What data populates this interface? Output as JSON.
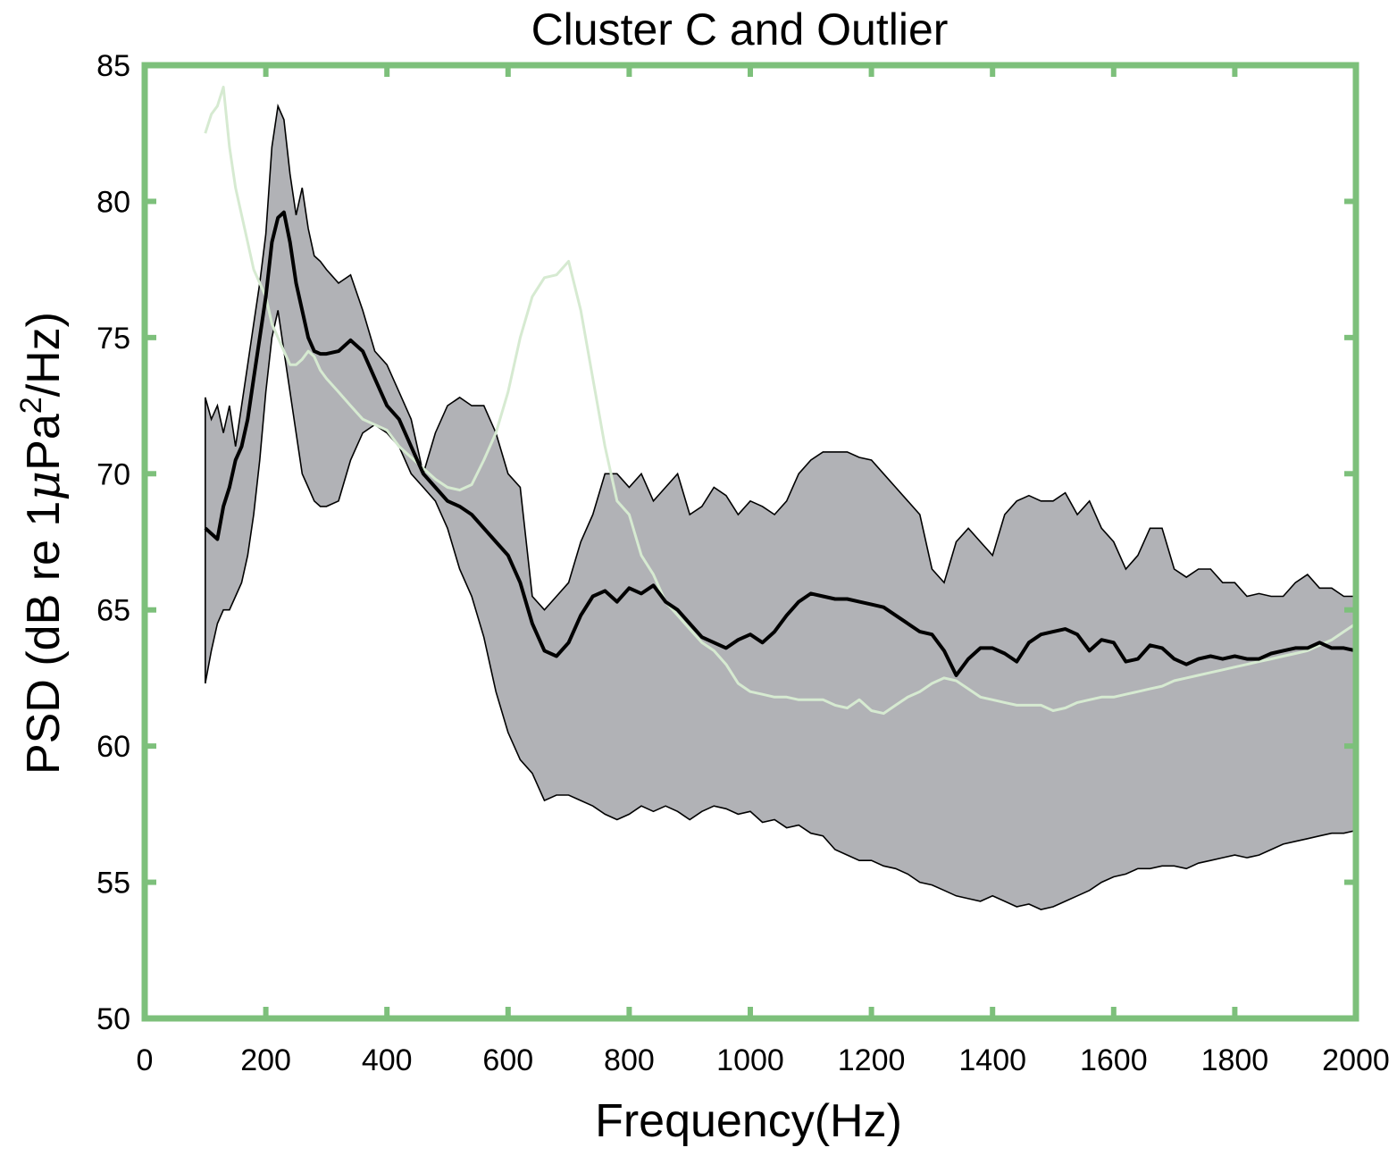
{
  "chart_data": {
    "type": "area",
    "title": "Cluster C and Outlier",
    "xlabel": "Frequency(Hz)",
    "ylabel": {
      "main": "PSD (dB re 1",
      "mu": "μ",
      "pa": "Pa",
      "sup": "2",
      "tail": "/Hz)"
    },
    "xlim": [
      0,
      2000
    ],
    "ylim": [
      50,
      85
    ],
    "xticks": [
      "0",
      "200",
      "400",
      "600",
      "800",
      "1000",
      "1200",
      "1400",
      "1600",
      "1800",
      "2000"
    ],
    "yticks": [
      "50",
      "55",
      "60",
      "65",
      "70",
      "75",
      "80",
      "85"
    ],
    "grid": false,
    "colors": {
      "frame": "#7dc07b",
      "band_fill": "#b1b2b6",
      "band_edge": "#000000",
      "mean_line": "#000000",
      "outlier_line": "#d6ead1"
    },
    "series": [
      {
        "role": "band-upper",
        "x": [
          100,
          110,
          120,
          130,
          140,
          150,
          160,
          170,
          180,
          190,
          200,
          210,
          220,
          230,
          240,
          250,
          260,
          270,
          280,
          290,
          300,
          320,
          340,
          360,
          380,
          400,
          420,
          440,
          460,
          480,
          500,
          520,
          540,
          560,
          580,
          600,
          620,
          640,
          660,
          680,
          700,
          720,
          740,
          760,
          780,
          800,
          820,
          840,
          860,
          880,
          900,
          920,
          940,
          960,
          980,
          1000,
          1020,
          1040,
          1060,
          1080,
          1100,
          1120,
          1140,
          1160,
          1180,
          1200,
          1220,
          1240,
          1260,
          1280,
          1300,
          1320,
          1340,
          1360,
          1380,
          1400,
          1420,
          1440,
          1460,
          1480,
          1500,
          1520,
          1540,
          1560,
          1580,
          1600,
          1620,
          1640,
          1660,
          1680,
          1700,
          1720,
          1740,
          1760,
          1780,
          1800,
          1820,
          1840,
          1860,
          1880,
          1900,
          1920,
          1940,
          1960,
          1980,
          2000
        ],
        "y": [
          72.8,
          72.0,
          72.5,
          71.5,
          72.5,
          71.0,
          72.5,
          74.0,
          75.5,
          77.0,
          78.8,
          82.0,
          83.5,
          83.0,
          81.0,
          79.5,
          80.5,
          79.0,
          78.0,
          77.8,
          77.5,
          77.0,
          77.3,
          76.0,
          74.5,
          74.0,
          73.0,
          72.0,
          70.0,
          71.5,
          72.5,
          72.8,
          72.5,
          72.5,
          71.5,
          70.0,
          69.5,
          65.5,
          65.0,
          65.5,
          66.0,
          67.5,
          68.5,
          70.0,
          70.0,
          69.5,
          70.0,
          69.0,
          69.5,
          70.0,
          68.5,
          68.8,
          69.5,
          69.2,
          68.5,
          69.0,
          68.8,
          68.5,
          69.0,
          70.0,
          70.5,
          70.8,
          70.8,
          70.8,
          70.6,
          70.5,
          70.0,
          69.5,
          69.0,
          68.5,
          66.5,
          66.0,
          67.5,
          68.0,
          67.5,
          67.0,
          68.5,
          69.0,
          69.2,
          69.0,
          69.0,
          69.3,
          68.5,
          69.0,
          68.0,
          67.5,
          66.5,
          67.0,
          68.0,
          68.0,
          66.5,
          66.2,
          66.5,
          66.5,
          66.0,
          66.0,
          65.5,
          65.6,
          65.5,
          65.5,
          66.0,
          66.3,
          65.8,
          65.8,
          65.5,
          65.5
        ]
      },
      {
        "role": "band-lower",
        "x": [
          100,
          110,
          120,
          130,
          140,
          150,
          160,
          170,
          180,
          190,
          200,
          210,
          220,
          230,
          240,
          250,
          260,
          270,
          280,
          290,
          300,
          320,
          340,
          360,
          380,
          400,
          420,
          440,
          460,
          480,
          500,
          520,
          540,
          560,
          580,
          600,
          620,
          640,
          660,
          680,
          700,
          720,
          740,
          760,
          780,
          800,
          820,
          840,
          860,
          880,
          900,
          920,
          940,
          960,
          980,
          1000,
          1020,
          1040,
          1060,
          1080,
          1100,
          1120,
          1140,
          1160,
          1180,
          1200,
          1220,
          1240,
          1260,
          1280,
          1300,
          1320,
          1340,
          1360,
          1380,
          1400,
          1420,
          1440,
          1460,
          1480,
          1500,
          1520,
          1540,
          1560,
          1580,
          1600,
          1620,
          1640,
          1660,
          1680,
          1700,
          1720,
          1740,
          1760,
          1780,
          1800,
          1820,
          1840,
          1860,
          1880,
          1900,
          1920,
          1940,
          1960,
          1980,
          2000
        ],
        "y": [
          62.3,
          63.5,
          64.5,
          65.0,
          65.0,
          65.5,
          66.0,
          67.0,
          68.5,
          70.5,
          73.0,
          75.0,
          76.0,
          74.5,
          73.0,
          71.5,
          70.0,
          69.5,
          69.0,
          68.8,
          68.8,
          69.0,
          70.5,
          71.5,
          71.8,
          71.5,
          71.0,
          70.0,
          69.5,
          69.0,
          68.0,
          66.5,
          65.5,
          64.0,
          62.0,
          60.5,
          59.5,
          59.0,
          58.0,
          58.2,
          58.2,
          58.0,
          57.8,
          57.5,
          57.3,
          57.5,
          57.8,
          57.6,
          57.8,
          57.6,
          57.3,
          57.6,
          57.8,
          57.7,
          57.5,
          57.6,
          57.2,
          57.3,
          57.0,
          57.1,
          56.8,
          56.7,
          56.2,
          56.0,
          55.8,
          55.8,
          55.6,
          55.5,
          55.3,
          55.0,
          54.9,
          54.7,
          54.5,
          54.4,
          54.3,
          54.5,
          54.3,
          54.1,
          54.2,
          54.0,
          54.1,
          54.3,
          54.5,
          54.7,
          55.0,
          55.2,
          55.3,
          55.5,
          55.5,
          55.6,
          55.6,
          55.5,
          55.7,
          55.8,
          55.9,
          56.0,
          55.9,
          56.0,
          56.2,
          56.4,
          56.5,
          56.6,
          56.7,
          56.8,
          56.8,
          56.9
        ]
      },
      {
        "role": "mean",
        "x": [
          100,
          110,
          120,
          130,
          140,
          150,
          160,
          170,
          180,
          190,
          200,
          210,
          220,
          230,
          240,
          250,
          260,
          270,
          280,
          290,
          300,
          320,
          340,
          360,
          380,
          400,
          420,
          440,
          460,
          480,
          500,
          520,
          540,
          560,
          580,
          600,
          620,
          640,
          660,
          680,
          700,
          720,
          740,
          760,
          780,
          800,
          820,
          840,
          860,
          880,
          900,
          920,
          940,
          960,
          980,
          1000,
          1020,
          1040,
          1060,
          1080,
          1100,
          1120,
          1140,
          1160,
          1180,
          1200,
          1220,
          1240,
          1260,
          1280,
          1300,
          1320,
          1340,
          1360,
          1380,
          1400,
          1420,
          1440,
          1460,
          1480,
          1500,
          1520,
          1540,
          1560,
          1580,
          1600,
          1620,
          1640,
          1660,
          1680,
          1700,
          1720,
          1740,
          1760,
          1780,
          1800,
          1820,
          1840,
          1860,
          1880,
          1900,
          1920,
          1940,
          1960,
          1980,
          2000
        ],
        "y": [
          68.0,
          67.8,
          67.6,
          68.8,
          69.5,
          70.5,
          71.0,
          72.0,
          73.5,
          75.0,
          76.5,
          78.5,
          79.4,
          79.6,
          78.5,
          77.0,
          76.0,
          75.0,
          74.5,
          74.4,
          74.4,
          74.5,
          74.9,
          74.5,
          73.5,
          72.5,
          72.0,
          71.0,
          70.0,
          69.5,
          69.0,
          68.8,
          68.5,
          68.0,
          67.5,
          67.0,
          66.0,
          64.5,
          63.5,
          63.3,
          63.8,
          64.8,
          65.5,
          65.7,
          65.3,
          65.8,
          65.6,
          65.9,
          65.3,
          65.0,
          64.5,
          64.0,
          63.8,
          63.6,
          63.9,
          64.1,
          63.8,
          64.2,
          64.8,
          65.3,
          65.6,
          65.5,
          65.4,
          65.4,
          65.3,
          65.2,
          65.1,
          64.8,
          64.5,
          64.2,
          64.1,
          63.5,
          62.6,
          63.2,
          63.6,
          63.6,
          63.4,
          63.1,
          63.8,
          64.1,
          64.2,
          64.3,
          64.1,
          63.5,
          63.9,
          63.8,
          63.1,
          63.2,
          63.7,
          63.6,
          63.2,
          63.0,
          63.2,
          63.3,
          63.2,
          63.3,
          63.2,
          63.2,
          63.4,
          63.5,
          63.6,
          63.6,
          63.8,
          63.6,
          63.6,
          63.5
        ]
      },
      {
        "role": "outlier",
        "x": [
          100,
          110,
          120,
          130,
          140,
          150,
          160,
          170,
          180,
          190,
          200,
          210,
          220,
          230,
          240,
          250,
          260,
          270,
          280,
          290,
          300,
          320,
          340,
          360,
          380,
          400,
          420,
          440,
          460,
          480,
          500,
          520,
          540,
          560,
          580,
          600,
          620,
          640,
          660,
          680,
          700,
          720,
          740,
          760,
          780,
          800,
          820,
          840,
          860,
          880,
          900,
          920,
          940,
          960,
          980,
          1000,
          1020,
          1040,
          1060,
          1080,
          1100,
          1120,
          1140,
          1160,
          1180,
          1200,
          1220,
          1240,
          1260,
          1280,
          1300,
          1320,
          1340,
          1360,
          1380,
          1400,
          1420,
          1440,
          1460,
          1480,
          1500,
          1520,
          1540,
          1560,
          1580,
          1600,
          1620,
          1640,
          1660,
          1680,
          1700,
          1720,
          1740,
          1760,
          1780,
          1800,
          1820,
          1840,
          1860,
          1880,
          1900,
          1920,
          1940,
          1960,
          1980,
          2000
        ],
        "y": [
          82.5,
          83.2,
          83.5,
          84.2,
          82.0,
          80.5,
          79.5,
          78.5,
          77.5,
          77.0,
          76.5,
          75.5,
          75.0,
          74.5,
          74.0,
          74.0,
          74.2,
          74.5,
          74.3,
          73.8,
          73.5,
          73.0,
          72.5,
          72.0,
          71.8,
          71.6,
          71.0,
          70.6,
          70.2,
          69.8,
          69.5,
          69.4,
          69.6,
          70.5,
          71.5,
          73.0,
          75.0,
          76.5,
          77.2,
          77.3,
          77.8,
          76.0,
          73.5,
          71.0,
          69.0,
          68.5,
          67.0,
          66.3,
          65.3,
          64.8,
          64.3,
          63.8,
          63.5,
          63.0,
          62.3,
          62.0,
          61.9,
          61.8,
          61.8,
          61.7,
          61.7,
          61.7,
          61.5,
          61.4,
          61.7,
          61.3,
          61.2,
          61.5,
          61.8,
          62.0,
          62.3,
          62.5,
          62.4,
          62.1,
          61.8,
          61.7,
          61.6,
          61.5,
          61.5,
          61.5,
          61.3,
          61.4,
          61.6,
          61.7,
          61.8,
          61.8,
          61.9,
          62.0,
          62.1,
          62.2,
          62.4,
          62.5,
          62.6,
          62.7,
          62.8,
          62.9,
          63.0,
          63.1,
          63.2,
          63.3,
          63.4,
          63.5,
          63.7,
          63.9,
          64.2,
          64.5
        ]
      }
    ]
  }
}
